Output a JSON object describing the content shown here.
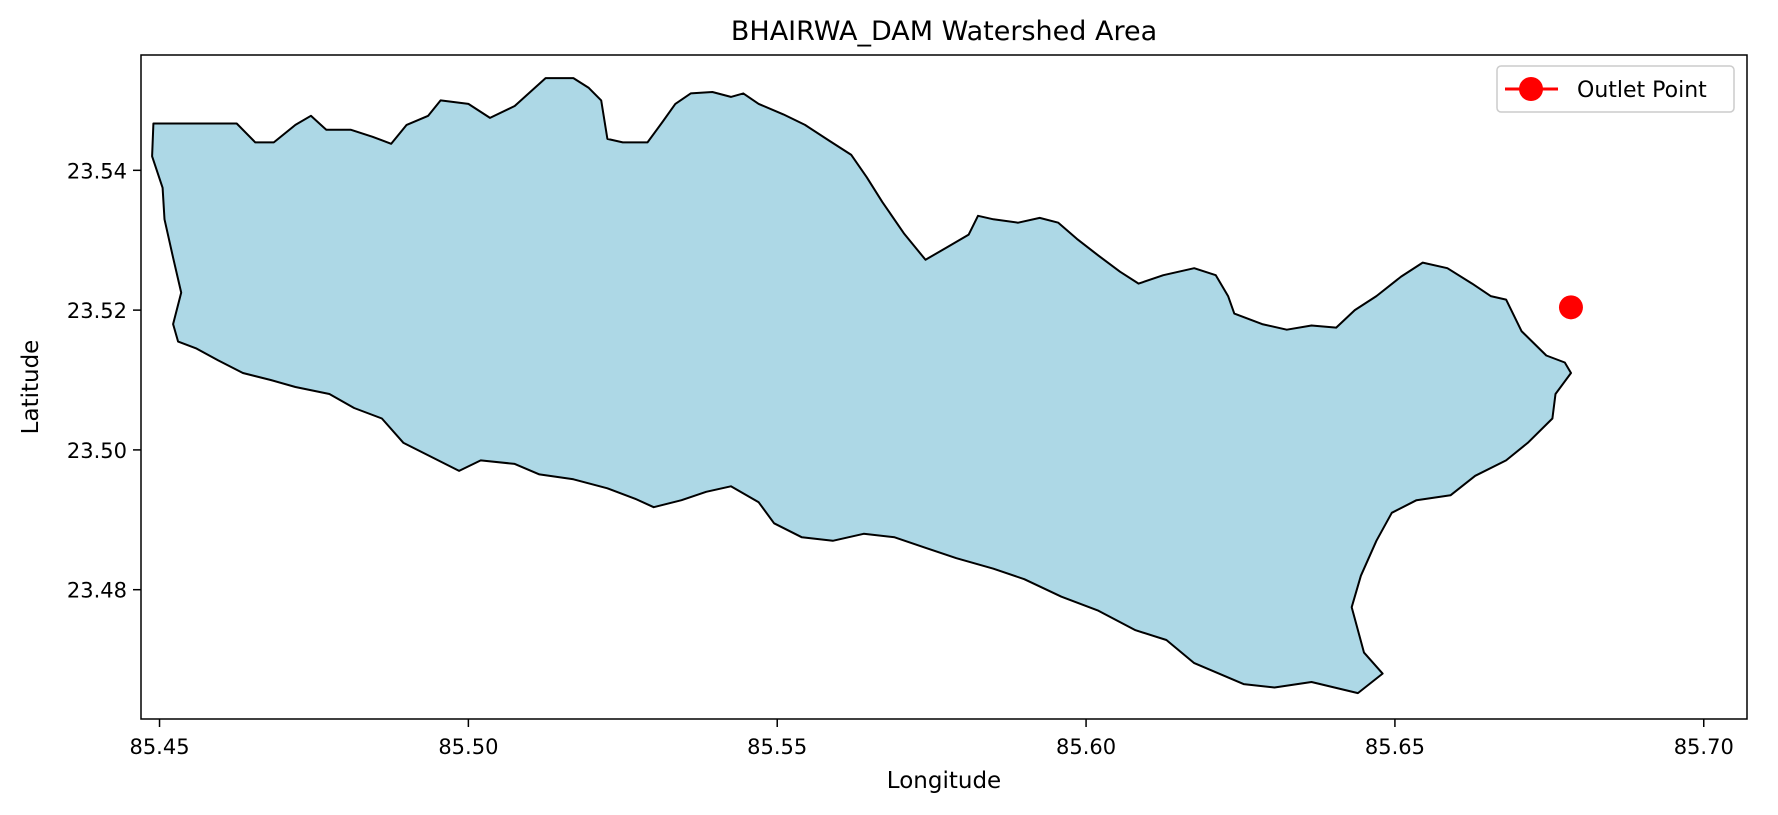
{
  "chart_data": {
    "type": "map",
    "title": "BHAIRWA_DAM Watershed Area",
    "xlabel": "Longitude",
    "ylabel": "Latitude",
    "xlim": [
      85.447,
      85.707
    ],
    "ylim": [
      23.4615,
      23.5565
    ],
    "xticks": [
      "85.45",
      "85.50",
      "85.55",
      "85.60",
      "85.65",
      "85.70"
    ],
    "yticks": [
      "23.48",
      "23.50",
      "23.52",
      "23.54"
    ],
    "grid": false,
    "legend": {
      "position": "upper-right",
      "entries": [
        "Outlet Point"
      ]
    },
    "watershed": {
      "fill": "#add8e6",
      "edge": "#000000",
      "boundary": [
        [
          85.4597,
          23.5467
        ],
        [
          85.4625,
          23.5467
        ],
        [
          85.4655,
          23.544
        ],
        [
          85.4685,
          23.544
        ],
        [
          85.472,
          23.5465
        ],
        [
          85.4745,
          23.5478
        ],
        [
          85.477,
          23.5458
        ],
        [
          85.481,
          23.5458
        ],
        [
          85.4845,
          23.5448
        ],
        [
          85.4875,
          23.5438
        ],
        [
          85.49,
          23.5465
        ],
        [
          85.4935,
          23.5478
        ],
        [
          85.4955,
          23.55
        ],
        [
          85.5,
          23.5495
        ],
        [
          85.5035,
          23.5475
        ],
        [
          85.5075,
          23.5492
        ],
        [
          85.5125,
          23.5532
        ],
        [
          85.517,
          23.5532
        ],
        [
          85.5195,
          23.5518
        ],
        [
          85.5215,
          23.55
        ],
        [
          85.5225,
          23.5445
        ],
        [
          85.525,
          23.544
        ],
        [
          85.529,
          23.544
        ],
        [
          85.5315,
          23.547
        ],
        [
          85.5335,
          23.5495
        ],
        [
          85.536,
          23.551
        ],
        [
          85.5395,
          23.5512
        ],
        [
          85.5425,
          23.5505
        ],
        [
          85.5445,
          23.551
        ],
        [
          85.547,
          23.5495
        ],
        [
          85.551,
          23.548
        ],
        [
          85.5545,
          23.5465
        ],
        [
          85.5585,
          23.5442
        ],
        [
          85.562,
          23.5422
        ],
        [
          85.5645,
          23.539
        ],
        [
          85.567,
          23.5355
        ],
        [
          85.5705,
          23.531
        ],
        [
          85.574,
          23.5272
        ],
        [
          85.5775,
          23.529
        ],
        [
          85.581,
          23.5308
        ],
        [
          85.5825,
          23.5335
        ],
        [
          85.585,
          23.533
        ],
        [
          85.589,
          23.5325
        ],
        [
          85.5925,
          23.5332
        ],
        [
          85.5955,
          23.5325
        ],
        [
          85.5985,
          23.5302
        ],
        [
          85.602,
          23.5278
        ],
        [
          85.6055,
          23.5255
        ],
        [
          85.6085,
          23.5238
        ],
        [
          85.6125,
          23.525
        ],
        [
          85.6175,
          23.526
        ],
        [
          85.621,
          23.525
        ],
        [
          85.623,
          23.522
        ],
        [
          85.624,
          23.5195
        ],
        [
          85.6285,
          23.518
        ],
        [
          85.6325,
          23.5172
        ],
        [
          85.6365,
          23.5178
        ],
        [
          85.6405,
          23.5175
        ],
        [
          85.6435,
          23.52
        ],
        [
          85.647,
          23.522
        ],
        [
          85.651,
          23.5248
        ],
        [
          85.6545,
          23.5268
        ],
        [
          85.6585,
          23.526
        ],
        [
          85.6625,
          23.5238
        ],
        [
          85.6655,
          23.522
        ],
        [
          85.668,
          23.5215
        ],
        [
          85.6705,
          23.517
        ],
        [
          85.6745,
          23.5135
        ],
        [
          85.6775,
          23.5125
        ],
        [
          85.6785,
          23.511
        ],
        [
          85.676,
          23.508
        ],
        [
          85.6755,
          23.5045
        ],
        [
          85.6715,
          23.501
        ],
        [
          85.668,
          23.4985
        ],
        [
          85.663,
          23.4963
        ],
        [
          85.659,
          23.4935
        ],
        [
          85.6535,
          23.4928
        ],
        [
          85.6495,
          23.491
        ],
        [
          85.647,
          23.487
        ],
        [
          85.6445,
          23.482
        ],
        [
          85.643,
          23.4775
        ],
        [
          85.645,
          23.471
        ],
        [
          85.648,
          23.468
        ],
        [
          85.644,
          23.4652
        ],
        [
          85.6365,
          23.4668
        ],
        [
          85.6305,
          23.466
        ],
        [
          85.6255,
          23.4665
        ],
        [
          85.6215,
          23.468
        ],
        [
          85.6175,
          23.4695
        ],
        [
          85.613,
          23.4728
        ],
        [
          85.608,
          23.4742
        ],
        [
          85.602,
          23.477
        ],
        [
          85.596,
          23.479
        ],
        [
          85.59,
          23.4815
        ],
        [
          85.585,
          23.483
        ],
        [
          85.579,
          23.4845
        ],
        [
          85.574,
          23.486
        ],
        [
          85.569,
          23.4875
        ],
        [
          85.564,
          23.488
        ],
        [
          85.559,
          23.487
        ],
        [
          85.554,
          23.4875
        ],
        [
          85.5495,
          23.4895
        ],
        [
          85.547,
          23.4925
        ],
        [
          85.5425,
          23.4948
        ],
        [
          85.5385,
          23.494
        ],
        [
          85.5345,
          23.4928
        ],
        [
          85.53,
          23.4918
        ],
        [
          85.527,
          23.493
        ],
        [
          85.5225,
          23.4945
        ],
        [
          85.517,
          23.4958
        ],
        [
          85.5115,
          23.4965
        ],
        [
          85.5075,
          23.498
        ],
        [
          85.502,
          23.4985
        ],
        [
          85.4985,
          23.497
        ],
        [
          85.494,
          23.499
        ],
        [
          85.4895,
          23.501
        ],
        [
          85.486,
          23.5045
        ],
        [
          85.4815,
          23.506
        ],
        [
          85.4775,
          23.508
        ],
        [
          85.472,
          23.509
        ],
        [
          85.468,
          23.51
        ],
        [
          85.4635,
          23.511
        ],
        [
          85.4595,
          23.5128
        ],
        [
          85.456,
          23.5145
        ],
        [
          85.453,
          23.5155
        ],
        [
          85.4522,
          23.518
        ],
        [
          85.4535,
          23.5225
        ],
        [
          85.4522,
          23.5275
        ],
        [
          85.4508,
          23.533
        ],
        [
          85.4505,
          23.5375
        ],
        [
          85.4488,
          23.542
        ],
        [
          85.449,
          23.5467
        ]
      ]
    },
    "outlet_point": {
      "label": "Outlet Point",
      "lon": 85.6785,
      "lat": 23.5204,
      "color": "#ff0000"
    }
  }
}
